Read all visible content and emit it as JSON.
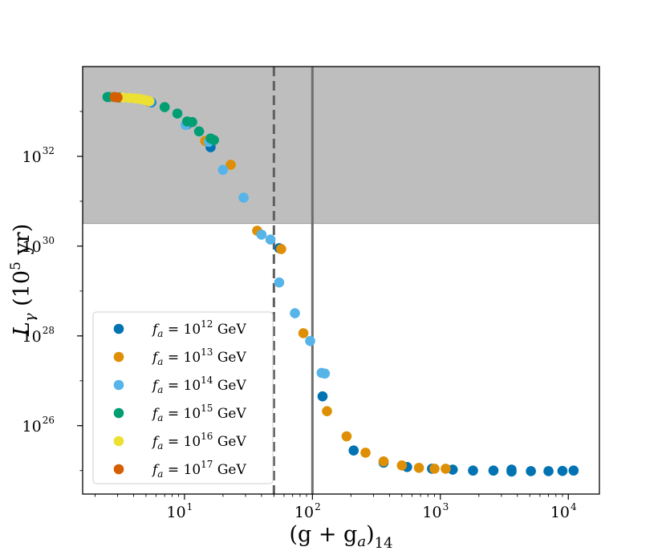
{
  "chart_data": {
    "type": "scatter",
    "title": "",
    "xlabel": "(g + g_a)_14",
    "xlabel_parts": {
      "open": "(g + g",
      "sub_a": "a",
      "close": ")",
      "sub_14": "14"
    },
    "ylabel": "L_γ (10^5 yr)",
    "ylabel_parts": {
      "L": "L",
      "sub_gamma": "γ",
      "open": "(10",
      "sup": "5",
      "close": " yr)"
    },
    "xscale": "log",
    "yscale": "log",
    "xlim": [
      1.6,
      17500
    ],
    "ylim": [
      3e+24,
      1e+34
    ],
    "x_ticks": [
      {
        "value": 10,
        "base": "10",
        "exp": "1"
      },
      {
        "value": 100,
        "base": "10",
        "exp": "2"
      },
      {
        "value": 1000,
        "base": "10",
        "exp": "3"
      },
      {
        "value": 10000,
        "base": "10",
        "exp": "4"
      }
    ],
    "y_ticks": [
      {
        "value": 1e+26,
        "base": "10",
        "exp": "26"
      },
      {
        "value": 1e+28,
        "base": "10",
        "exp": "28"
      },
      {
        "value": 1e+30,
        "base": "10",
        "exp": "30"
      },
      {
        "value": 1e+32,
        "base": "10",
        "exp": "32"
      }
    ],
    "shaded_region": {
      "y_from": 3.2e+30,
      "y_to": 1e+34,
      "color": "#bebebe"
    },
    "vertical_lines": [
      {
        "x": 50,
        "style": "dashed",
        "color": "#5f5f5f"
      },
      {
        "x": 100,
        "style": "solid",
        "color": "#6f6f6f"
      }
    ],
    "legend": {
      "placement": "lower-left"
    },
    "series": [
      {
        "name": "f_a = 10^12 GeV",
        "label": {
          "f": "f",
          "sub": "a",
          "eq": " = 10",
          "sup": "12",
          "unit": " GeV"
        },
        "color": "#0173b2",
        "points": [
          [
            2.6,
            2.1e+33
          ],
          [
            5.5,
            1.6e+33
          ],
          [
            10.5,
            5.2e+32
          ],
          [
            16,
            1.6e+32
          ],
          [
            55,
            9e+29
          ],
          [
            120,
            4.5e+26
          ],
          [
            210,
            2.8e+25
          ],
          [
            360,
            1.5e+25
          ],
          [
            550,
            1.2e+25
          ],
          [
            860,
            1.1e+25
          ],
          [
            1250,
            1.05e+25
          ],
          [
            1800,
            1e+25
          ],
          [
            2600,
            1e+25
          ],
          [
            3600,
            1.05e+25
          ],
          [
            3600,
            9.5e+24
          ],
          [
            5100,
            9.7e+24
          ],
          [
            7000,
            9.7e+24
          ],
          [
            9000,
            9.8e+24
          ],
          [
            11000,
            1e+25
          ]
        ]
      },
      {
        "name": "f_a = 10^13 GeV",
        "label": {
          "f": "f",
          "sub": "a",
          "eq": " = 10",
          "sup": "13",
          "unit": " GeV"
        },
        "color": "#de8f05",
        "points": [
          [
            2.7,
            2.1e+33
          ],
          [
            5.3,
            1.65e+33
          ],
          [
            14.5,
            2.2e+32
          ],
          [
            23,
            6.5e+31
          ],
          [
            37,
            2.2e+30
          ],
          [
            57,
            8.6e+29
          ],
          [
            85,
            1.15e+28
          ],
          [
            130,
            2.1e+26
          ],
          [
            185,
            5.8e+25
          ],
          [
            260,
            2.5e+25
          ],
          [
            360,
            1.6e+25
          ],
          [
            500,
            1.3e+25
          ],
          [
            680,
            1.15e+25
          ],
          [
            900,
            1.1e+25
          ],
          [
            1100,
            1.1e+25
          ]
        ]
      },
      {
        "name": "f_a = 10^14 GeV",
        "label": {
          "f": "f",
          "sub": "a",
          "eq": " = 10",
          "sup": "14",
          "unit": " GeV"
        },
        "color": "#56b4e9",
        "points": [
          [
            2.8,
            2.1e+33
          ],
          [
            5.4,
            1.65e+33
          ],
          [
            10.2,
            5e+32
          ],
          [
            15.5,
            2.1e+32
          ],
          [
            20,
            5e+31
          ],
          [
            29,
            1.2e+31
          ],
          [
            40,
            1.8e+30
          ],
          [
            47,
            1.4e+30
          ],
          [
            55,
            1.55e+29
          ],
          [
            73,
            3.2e+28
          ],
          [
            96,
            7.7e+27
          ],
          [
            118,
            1.5e+27
          ],
          [
            125,
            1.45e+27
          ]
        ]
      },
      {
        "name": "f_a = 10^15 GeV",
        "label": {
          "f": "f",
          "sub": "a",
          "eq": " = 10",
          "sup": "15",
          "unit": " GeV"
        },
        "color": "#029e73",
        "points": [
          [
            2.5,
            2.1e+33
          ],
          [
            3.1,
            2.05e+33
          ],
          [
            7,
            1.25e+33
          ],
          [
            8.8,
            9e+32
          ],
          [
            10.5,
            6e+32
          ],
          [
            11.5,
            5.8e+32
          ],
          [
            13,
            3.6e+32
          ],
          [
            16,
            2.5e+32
          ],
          [
            17,
            2.3e+32
          ]
        ]
      },
      {
        "name": "f_a = 10^16 GeV",
        "label": {
          "f": "f",
          "sub": "a",
          "eq": " = 10",
          "sup": "16",
          "unit": " GeV"
        },
        "color": "#ece133",
        "points": [
          [
            3.3,
            2.05e+33
          ],
          [
            3.7,
            2e+33
          ],
          [
            4.1,
            1.95e+33
          ],
          [
            4.5,
            1.9e+33
          ],
          [
            4.9,
            1.8e+33
          ],
          [
            5.3,
            1.7e+33
          ]
        ]
      },
      {
        "name": "f_a = 10^17 GeV",
        "label": {
          "f": "f",
          "sub": "a",
          "eq": " = 10",
          "sup": "17",
          "unit": " GeV"
        },
        "color": "#d55e00",
        "points": [
          [
            2.85,
            2.1e+33
          ],
          [
            3.0,
            2.05e+33
          ]
        ]
      }
    ]
  }
}
